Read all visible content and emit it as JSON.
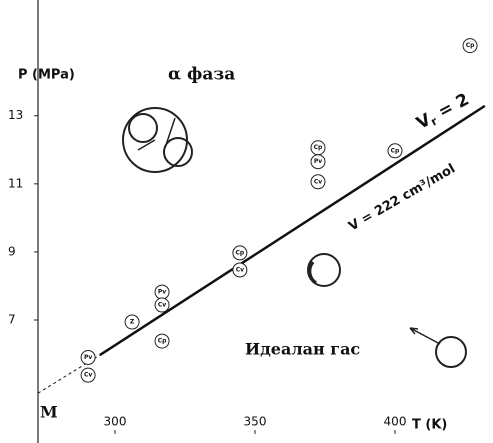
{
  "chart_data": {
    "type": "scatter",
    "y_label": "P (MPa)",
    "x_label": "T (K)",
    "xlim": [
      272.5,
      435
    ],
    "ylim": [
      4.65,
      16.4
    ],
    "xticks": [
      300,
      350,
      400
    ],
    "yticks": [
      7,
      9,
      11,
      13
    ],
    "points": {
      "x": [
        290.4,
        290.4,
        306.1,
        316.8,
        316.8,
        316.8,
        344.6,
        344.6,
        372.5,
        372.5,
        372.5,
        400,
        426.8
      ],
      "values": [
        5.9,
        5.38,
        6.94,
        7.82,
        7.44,
        6.38,
        8.97,
        8.47,
        12.06,
        11.65,
        11.06,
        11.97,
        15.06
      ],
      "labels": [
        "Pv",
        "Cv",
        "Z",
        "Pv",
        "Cv",
        "Cp",
        "Cp",
        "Cv",
        "Cp",
        "Pv",
        "Cv",
        "Cp",
        "Cp"
      ]
    },
    "line": {
      "x": [
        294.6,
        432.1
      ],
      "values": [
        5.97,
        13.29
      ]
    },
    "dashed_line": {
      "x": [
        272.5,
        294.6
      ],
      "values": [
        4.85,
        5.97
      ]
    },
    "point_label": "M",
    "alpha_phase": "α фаза",
    "ideal_gas": "Идеалан гас",
    "vr_symbol": "V",
    "vr_subscript": "r",
    "vr_value": " = 2",
    "volume": "V = 222 cm³/mol"
  }
}
